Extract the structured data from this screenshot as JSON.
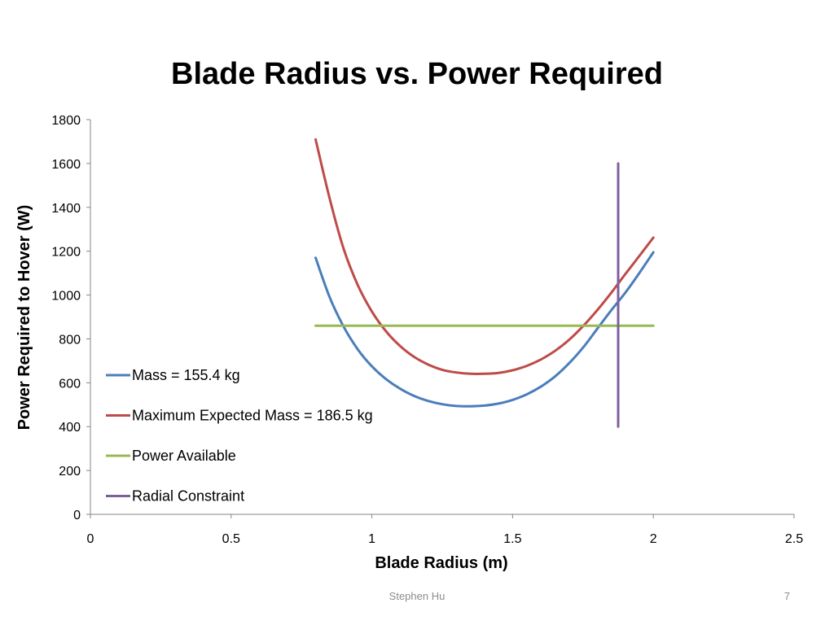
{
  "slide": {
    "title": "Blade Radius vs. Power Required",
    "author": "Stephen Hu",
    "page_number": "7"
  },
  "chart_data": {
    "type": "line",
    "title": "Blade Radius vs. Power Required",
    "xlabel": "Blade Radius (m)",
    "ylabel": "Power Required to Hover (W)",
    "xlim": [
      0,
      2.5
    ],
    "ylim": [
      0,
      1800
    ],
    "xticks": [
      "0",
      "0.5",
      "1",
      "1.5",
      "2",
      "2.5"
    ],
    "yticks": [
      "0",
      "200",
      "400",
      "600",
      "800",
      "1000",
      "1200",
      "1400",
      "1600",
      "1800"
    ],
    "grid": false,
    "legend_position": "inside-left",
    "series": [
      {
        "name": "Mass = 155.4 kg",
        "color": "#4a7ebb",
        "x": [
          0.8,
          0.85,
          0.9,
          0.95,
          1.0,
          1.05,
          1.1,
          1.15,
          1.2,
          1.25,
          1.3,
          1.35,
          1.4,
          1.45,
          1.5,
          1.55,
          1.6,
          1.65,
          1.7,
          1.75,
          1.8,
          1.85,
          1.9,
          1.95,
          2.0
        ],
        "y": [
          1170,
          990,
          855,
          752,
          675,
          617,
          573,
          540,
          517,
          502,
          494,
          493,
          496,
          505,
          522,
          547,
          582,
          628,
          688,
          760,
          845,
          930,
          1010,
          1100,
          1195
        ]
      },
      {
        "name": "Maximum Expected Mass = 186.5 kg",
        "color": "#be4b48",
        "x": [
          0.8,
          0.85,
          0.9,
          0.95,
          1.0,
          1.05,
          1.1,
          1.15,
          1.2,
          1.25,
          1.3,
          1.35,
          1.4,
          1.45,
          1.5,
          1.55,
          1.6,
          1.65,
          1.7,
          1.75,
          1.8,
          1.85,
          1.9,
          1.95,
          2.0
        ],
        "y": [
          1710,
          1440,
          1210,
          1045,
          925,
          835,
          768,
          718,
          683,
          659,
          647,
          641,
          641,
          645,
          657,
          677,
          706,
          745,
          795,
          858,
          930,
          1010,
          1095,
          1178,
          1262
        ]
      },
      {
        "name": "Power Available",
        "color": "#98b954",
        "x": [
          0.8,
          2.0
        ],
        "y": [
          860,
          860
        ]
      },
      {
        "name": "Radial Constraint",
        "color": "#7d5fa0",
        "x": [
          1.875,
          1.875
        ],
        "y": [
          400,
          1600
        ]
      }
    ]
  }
}
